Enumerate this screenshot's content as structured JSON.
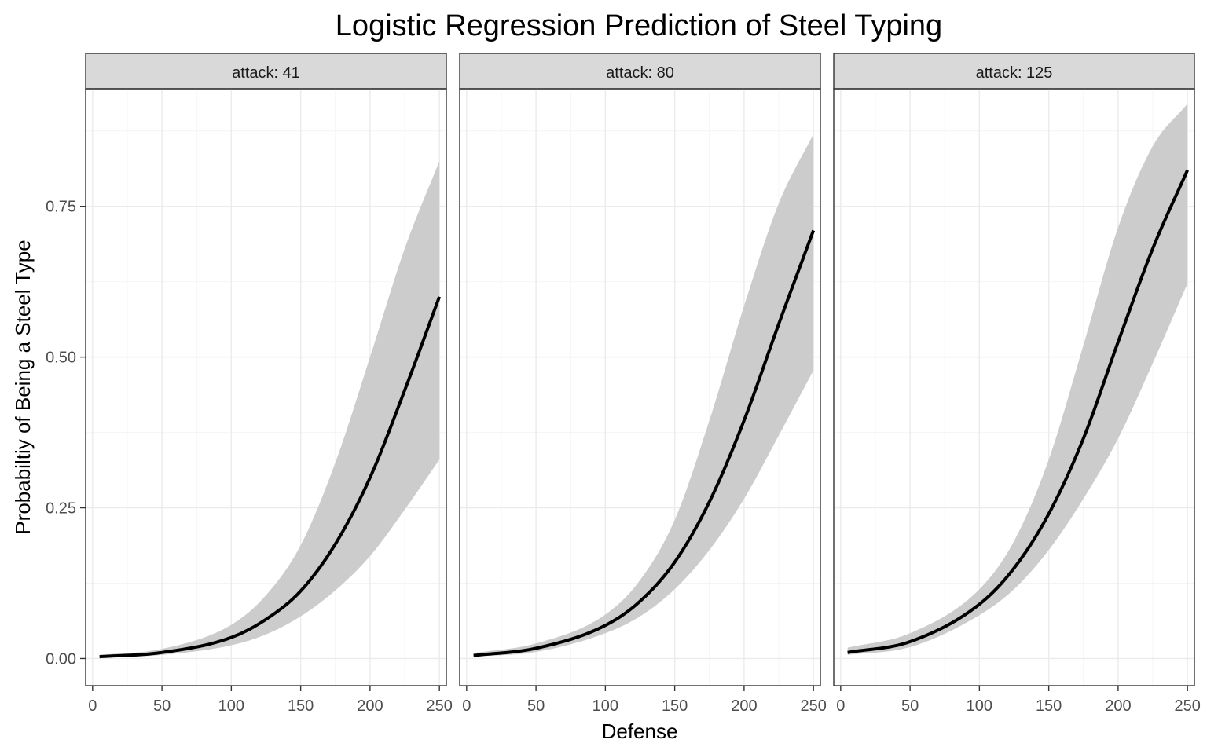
{
  "chart_data": {
    "type": "line",
    "title": "Logistic Regression Prediction of Steel Typing",
    "xlabel": "Defense",
    "ylabel": "Probabiltiy of Being a Steel Type",
    "xlim": [
      -5,
      255
    ],
    "ylim": [
      -0.045,
      0.945
    ],
    "x_ticks": [
      "0",
      "50",
      "100",
      "150",
      "200",
      "250"
    ],
    "x_tick_values": [
      0,
      50,
      100,
      150,
      200,
      250
    ],
    "y_ticks": [
      "0.00",
      "0.25",
      "0.50",
      "0.75"
    ],
    "y_tick_values": [
      0,
      0.25,
      0.5,
      0.75
    ],
    "grid": true,
    "colors": {
      "line": "#000000",
      "ribbon": "#cccccc",
      "strip": "#d9d9d9",
      "grid_major": "#ebebeb",
      "grid_minor": "#f4f4f4",
      "panel_border": "#333333"
    },
    "x": [
      5,
      50,
      100,
      125,
      150,
      175,
      200,
      225,
      250
    ],
    "panels": [
      {
        "strip": "attack: 41",
        "fit": [
          0.003,
          0.01,
          0.035,
          0.065,
          0.112,
          0.19,
          0.3,
          0.445,
          0.6
        ],
        "lower": [
          0.001,
          0.006,
          0.022,
          0.04,
          0.07,
          0.113,
          0.17,
          0.247,
          0.33
        ],
        "upper": [
          0.006,
          0.016,
          0.056,
          0.105,
          0.188,
          0.325,
          0.5,
          0.68,
          0.825
        ]
      },
      {
        "strip": "attack: 80",
        "fit": [
          0.005,
          0.017,
          0.055,
          0.095,
          0.16,
          0.26,
          0.395,
          0.555,
          0.71
        ],
        "lower": [
          0.003,
          0.011,
          0.042,
          0.07,
          0.115,
          0.18,
          0.265,
          0.37,
          0.478
        ],
        "upper": [
          0.009,
          0.025,
          0.073,
          0.13,
          0.23,
          0.395,
          0.585,
          0.755,
          0.87
        ]
      },
      {
        "strip": "attack: 125",
        "fit": [
          0.01,
          0.028,
          0.09,
          0.15,
          0.24,
          0.365,
          0.525,
          0.68,
          0.81
        ],
        "lower": [
          0.006,
          0.019,
          0.072,
          0.115,
          0.18,
          0.265,
          0.365,
          0.49,
          0.622
        ],
        "upper": [
          0.018,
          0.042,
          0.115,
          0.195,
          0.33,
          0.52,
          0.715,
          0.85,
          0.92
        ]
      }
    ]
  }
}
